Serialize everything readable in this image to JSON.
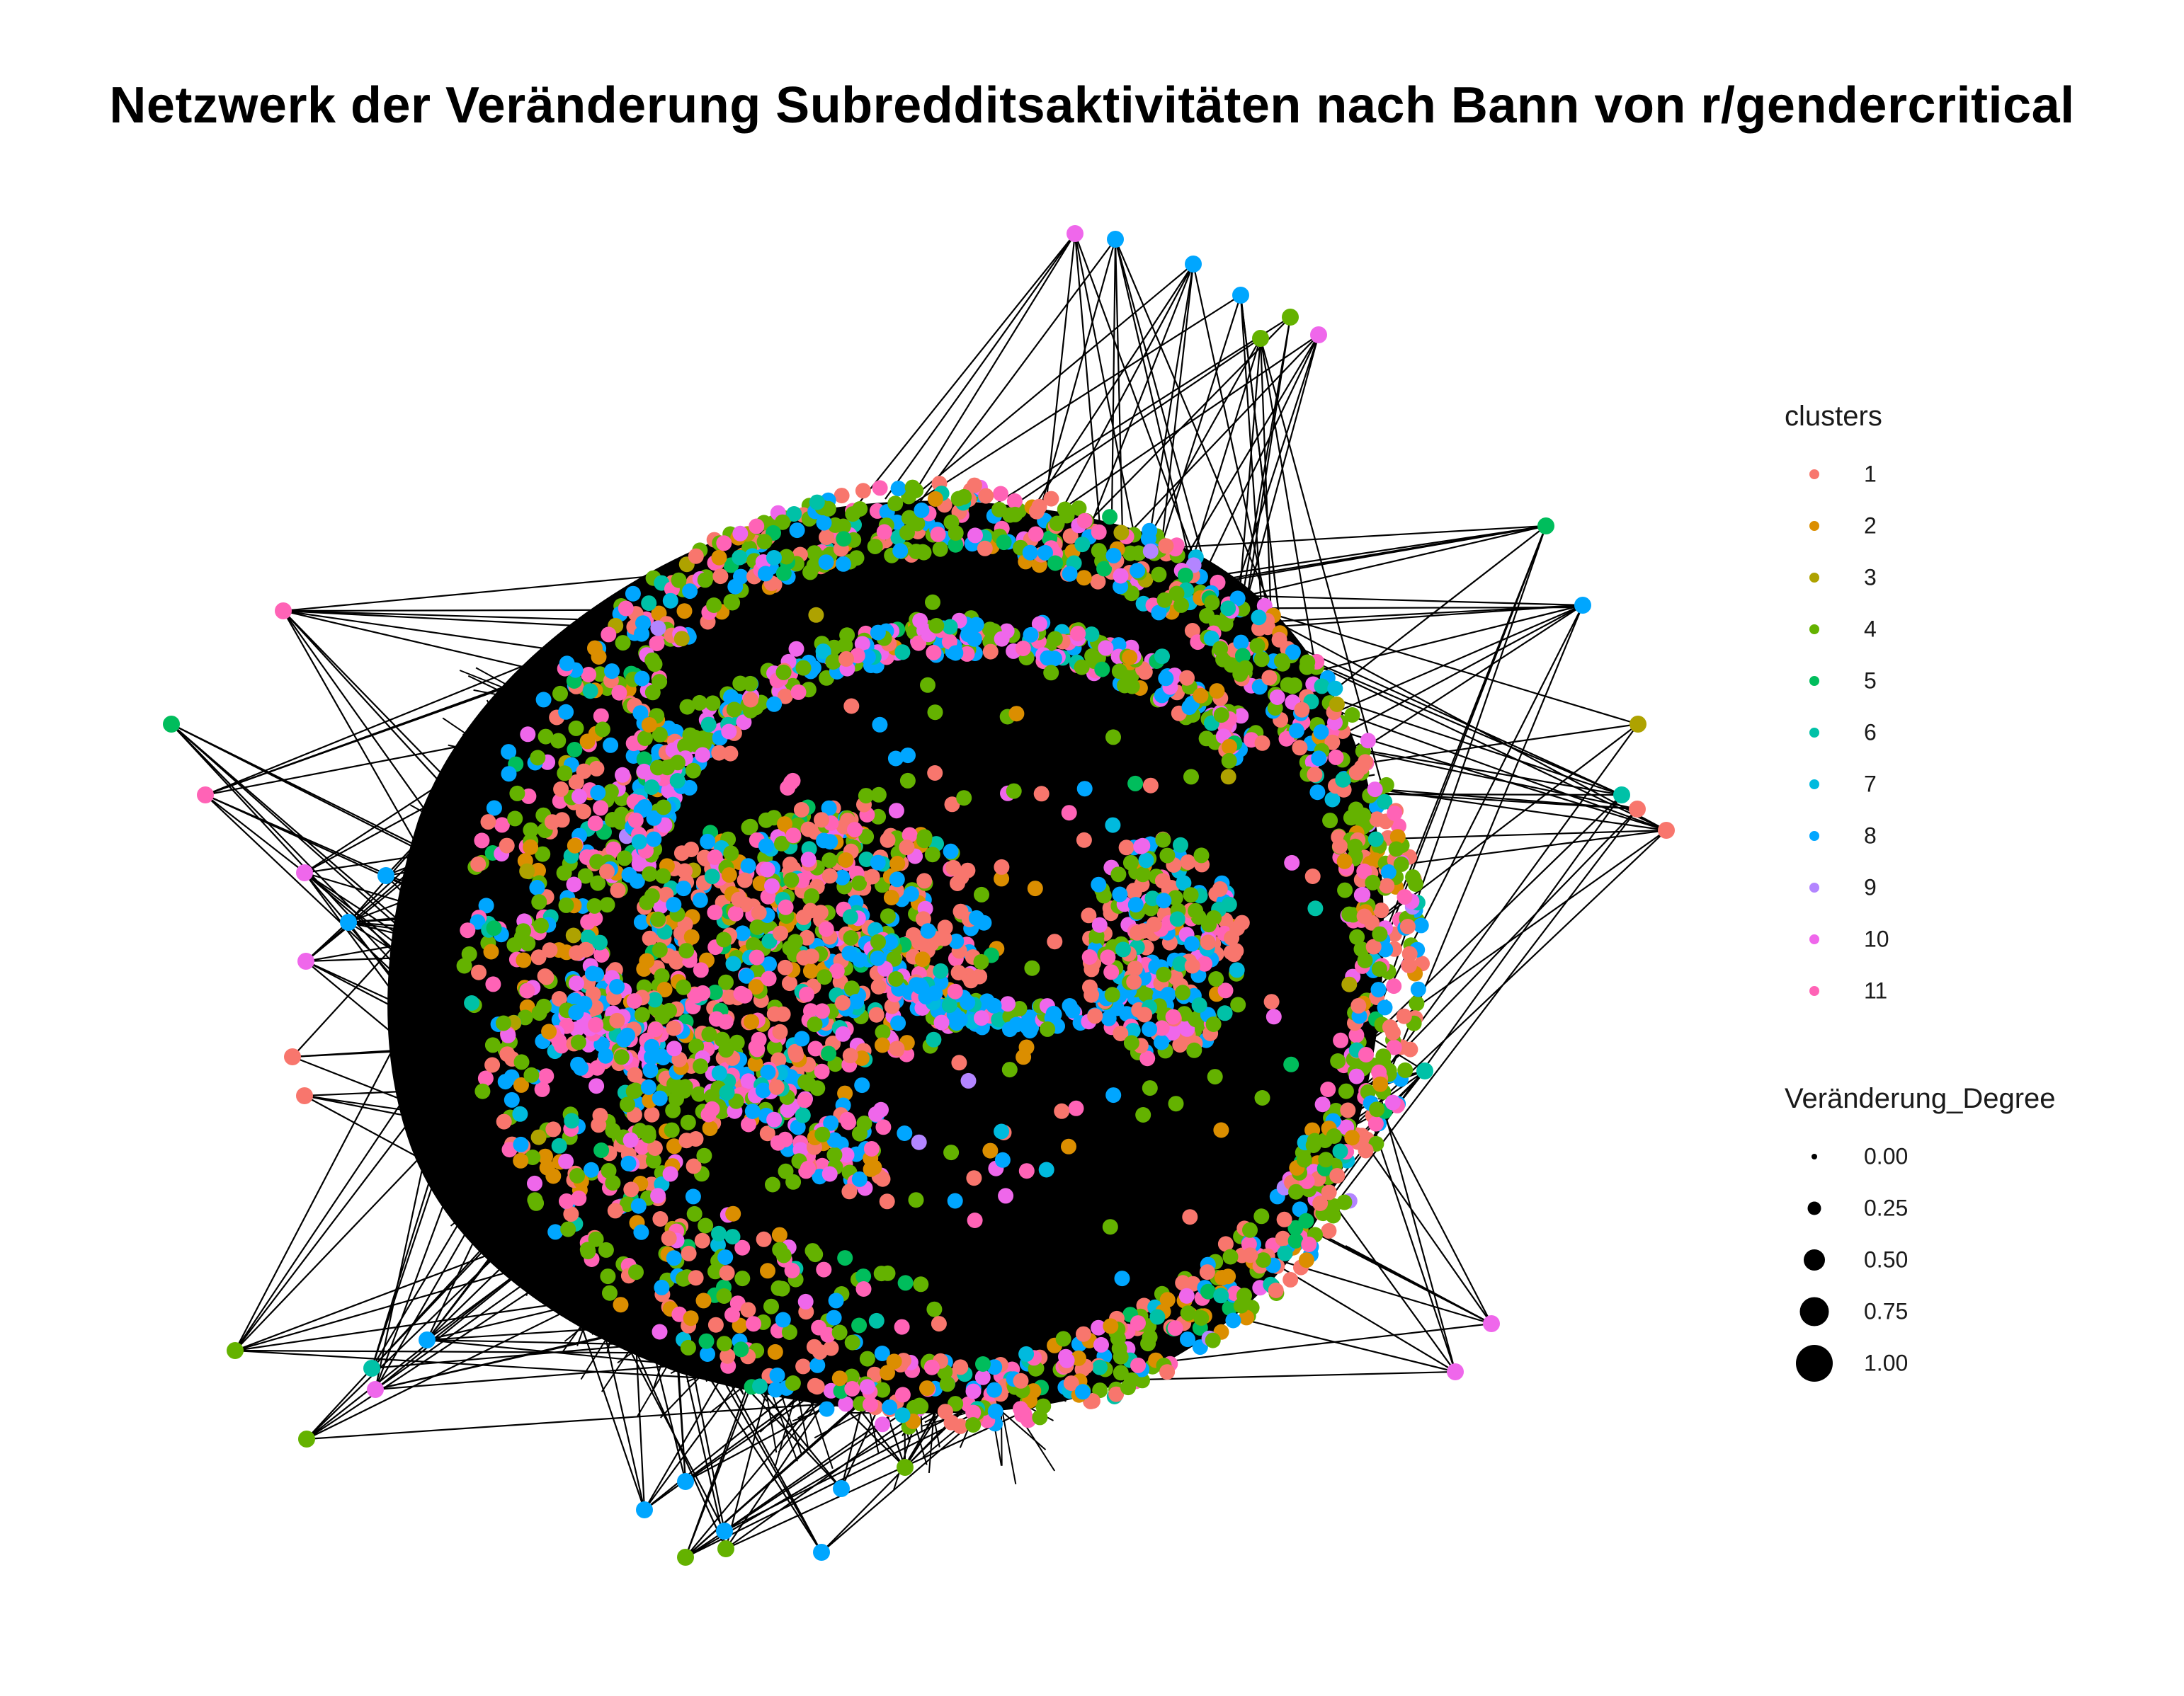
{
  "chart_data": {
    "type": "network",
    "title": "Netzwerk der Veränderung Subredditsaktivitäten nach Bann von r/gendercritical",
    "legend_placement": "right",
    "grid": false,
    "color_legend": {
      "title": "clusters",
      "entries": [
        {
          "label": "1",
          "color": "#F8766D"
        },
        {
          "label": "2",
          "color": "#DB8E00"
        },
        {
          "label": "3",
          "color": "#AEA200"
        },
        {
          "label": "4",
          "color": "#64B200"
        },
        {
          "label": "5",
          "color": "#00BD5C"
        },
        {
          "label": "6",
          "color": "#00C1A7"
        },
        {
          "label": "7",
          "color": "#00BADE"
        },
        {
          "label": "8",
          "color": "#00A6FF"
        },
        {
          "label": "9",
          "color": "#B385FF"
        },
        {
          "label": "10",
          "color": "#EF67EB"
        },
        {
          "label": "11",
          "color": "#FF63B6"
        }
      ]
    },
    "size_legend": {
      "title": "Veränderung_Degree",
      "entries": [
        {
          "label": "0.00",
          "value": 0.0
        },
        {
          "label": "0.25",
          "value": 0.25
        },
        {
          "label": "0.50",
          "value": 0.5
        },
        {
          "label": "0.75",
          "value": 0.75
        },
        {
          "label": "1.00",
          "value": 1.0
        }
      ]
    }
  }
}
